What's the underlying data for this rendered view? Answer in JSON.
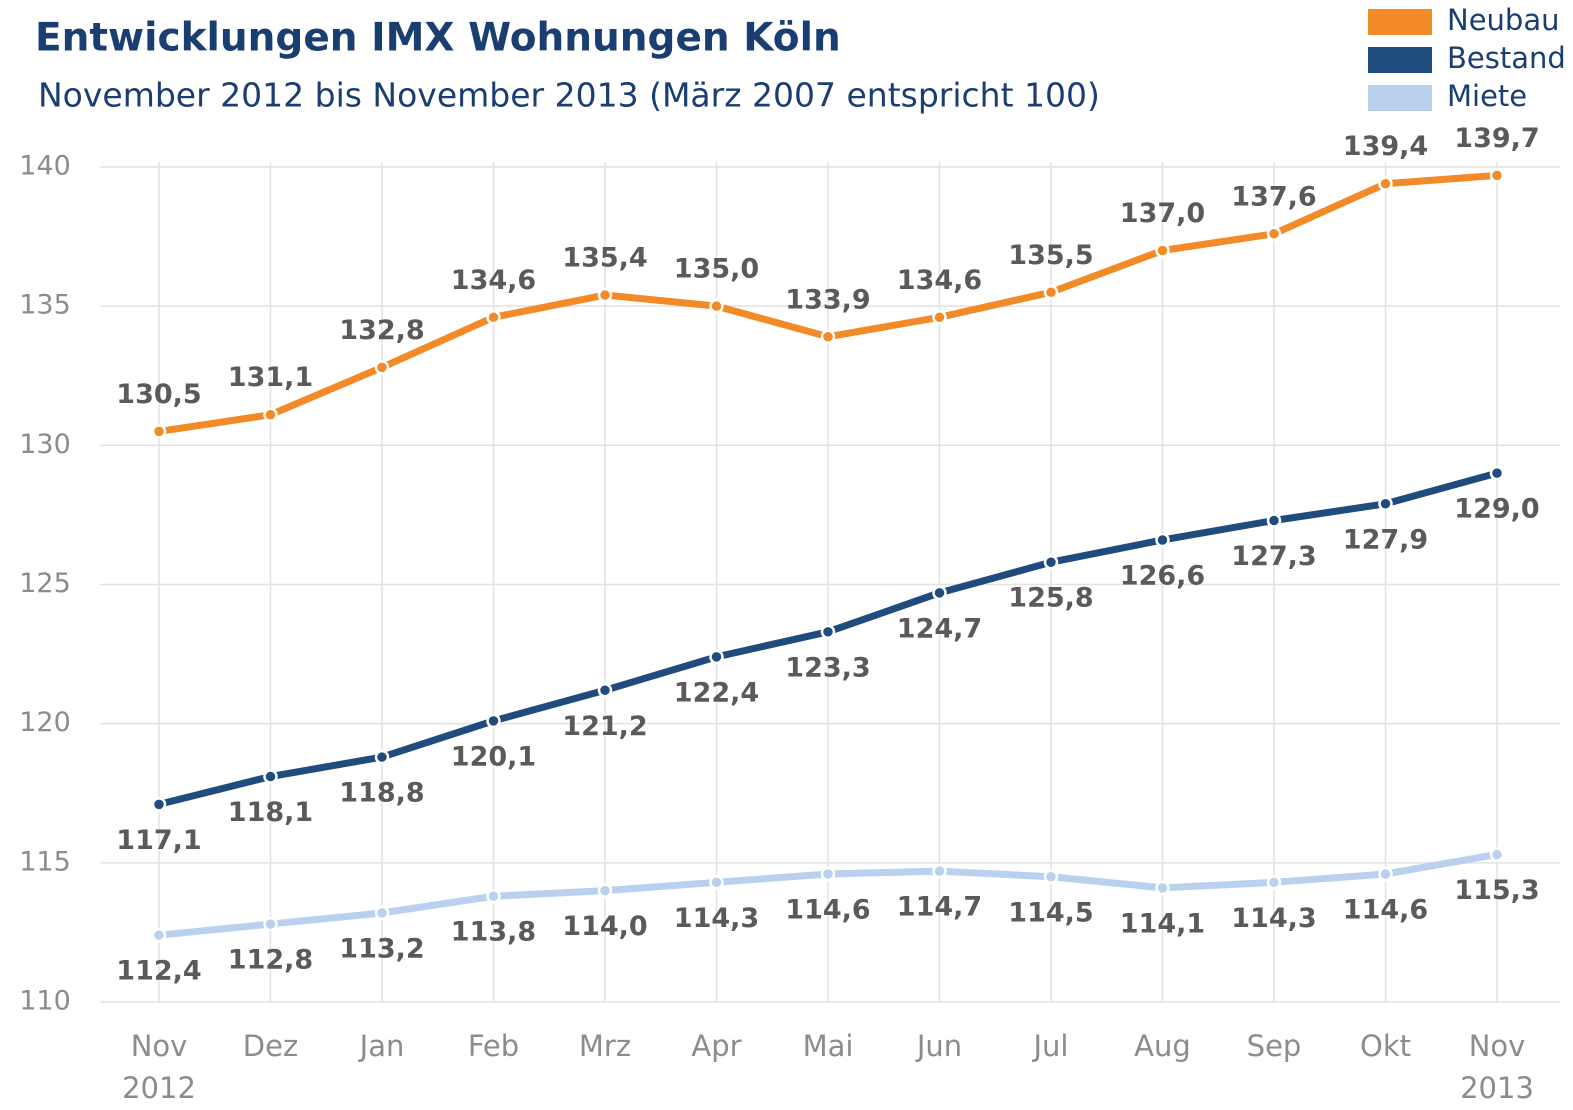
{
  "chart_data": {
    "type": "line",
    "title": "Entwicklungen IMX Wohnungen Köln",
    "subtitle": "November 2012 bis November 2013 (März 2007 entspricht 100)",
    "categories": [
      "Nov",
      "Dez",
      "Jan",
      "Feb",
      "Mrz",
      "Apr",
      "Mai",
      "Jun",
      "Jul",
      "Aug",
      "Sep",
      "Okt",
      "Nov"
    ],
    "category_years": [
      "2012",
      null,
      null,
      null,
      null,
      null,
      null,
      null,
      null,
      null,
      null,
      null,
      "2013"
    ],
    "series": [
      {
        "name": "Neubau",
        "color": "#f28a28",
        "values": [
          130.5,
          131.1,
          132.8,
          134.6,
          135.4,
          135.0,
          133.9,
          134.6,
          135.5,
          137.0,
          137.6,
          139.4,
          139.7
        ],
        "value_labels": [
          "130,5",
          "131,1",
          "132,8",
          "134,6",
          "135,4",
          "135,0",
          "133,9",
          "134,6",
          "135,5",
          "137,0",
          "137,6",
          "139,4",
          "139,7"
        ]
      },
      {
        "name": "Bestand",
        "color": "#1f4b7d",
        "values": [
          117.1,
          118.1,
          118.8,
          120.1,
          121.2,
          122.4,
          123.3,
          124.7,
          125.8,
          126.6,
          127.3,
          127.9,
          129.0
        ],
        "value_labels": [
          "117,1",
          "118,1",
          "118,8",
          "120,1",
          "121,2",
          "122,4",
          "123,3",
          "124,7",
          "125,8",
          "126,6",
          "127,3",
          "127,9",
          "129,0"
        ]
      },
      {
        "name": "Miete",
        "color": "#b9d0ee",
        "values": [
          112.4,
          112.8,
          113.2,
          113.8,
          114.0,
          114.3,
          114.6,
          114.7,
          114.5,
          114.1,
          114.3,
          114.6,
          115.3
        ],
        "value_labels": [
          "112,4",
          "112,8",
          "113,2",
          "113,8",
          "114,0",
          "114,3",
          "114,6",
          "114,7",
          "114,5",
          "114,1",
          "114,3",
          "114,6",
          "115,3"
        ]
      }
    ],
    "ylim": [
      110,
      140
    ],
    "yticks": [
      110,
      115,
      120,
      125,
      130,
      135,
      140
    ],
    "grid": true,
    "legend": "top-right"
  }
}
